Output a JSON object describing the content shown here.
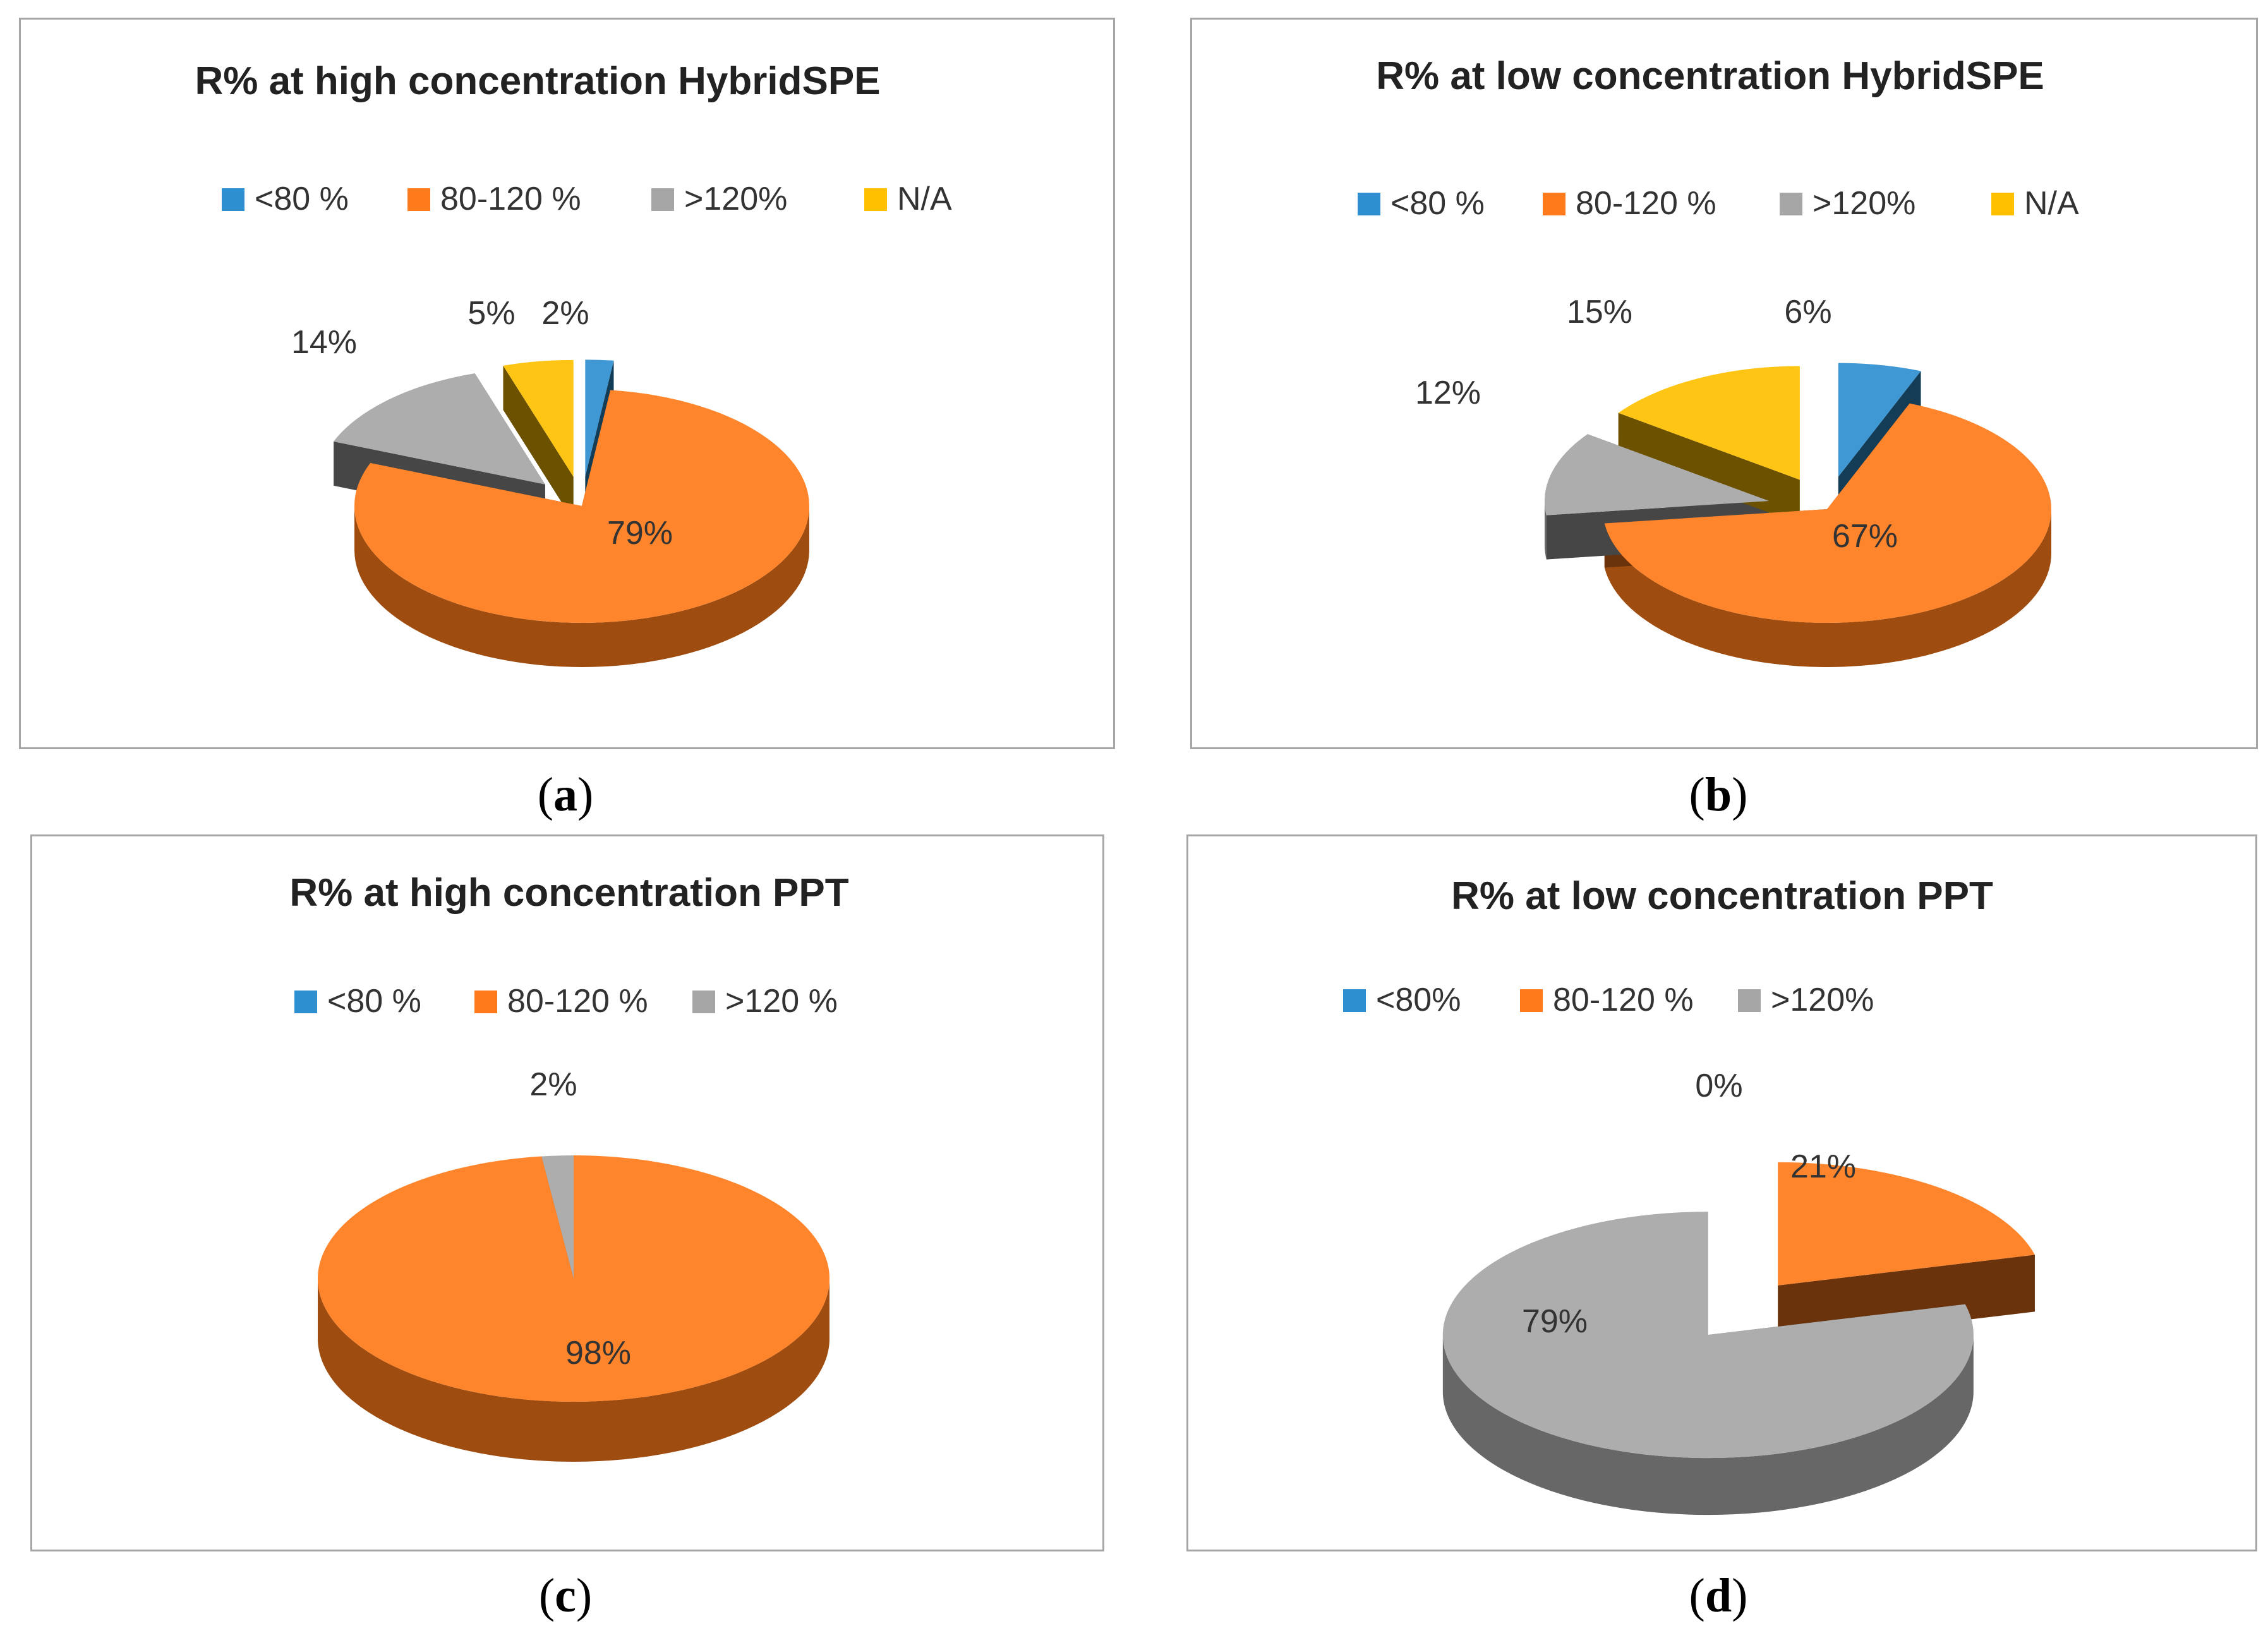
{
  "colors": {
    "blue": "#2e8fd0",
    "orange": "#ff7a1a",
    "gray": "#a6a6a6",
    "yellow": "#ffc000"
  },
  "chart_data": [
    {
      "id": "a",
      "type": "pie",
      "title": "R% at high concentration HybridSPE",
      "caption": "a",
      "legend": [
        "<80 %",
        "80-120 %",
        ">120%",
        "N/A"
      ],
      "legend_colors": [
        "blue",
        "orange",
        "gray",
        "yellow"
      ],
      "slices": [
        {
          "label": "<80 %",
          "value": 2,
          "text": "2%",
          "color": "blue"
        },
        {
          "label": "80-120 %",
          "value": 79,
          "text": "79%",
          "color": "orange"
        },
        {
          "label": ">120%",
          "value": 14,
          "text": "14%",
          "color": "gray"
        },
        {
          "label": "N/A",
          "value": 5,
          "text": "5%",
          "color": "yellow"
        }
      ]
    },
    {
      "id": "b",
      "type": "pie",
      "title": "R% at low concentration HybridSPE",
      "caption": "b",
      "legend": [
        "<80 %",
        "80-120 %",
        ">120%",
        "N/A"
      ],
      "legend_colors": [
        "blue",
        "orange",
        "gray",
        "yellow"
      ],
      "slices": [
        {
          "label": "<80 %",
          "value": 6,
          "text": "6%",
          "color": "blue"
        },
        {
          "label": "80-120 %",
          "value": 67,
          "text": "67%",
          "color": "orange"
        },
        {
          "label": ">120%",
          "value": 12,
          "text": "12%",
          "color": "gray"
        },
        {
          "label": "N/A",
          "value": 15,
          "text": "15%",
          "color": "yellow"
        }
      ]
    },
    {
      "id": "c",
      "type": "pie",
      "title": "R% at high concentration PPT",
      "caption": "c",
      "legend": [
        "<80 %",
        "80-120 %",
        ">120 %"
      ],
      "legend_colors": [
        "blue",
        "orange",
        "gray"
      ],
      "slices": [
        {
          "label": "80-120 %",
          "value": 98,
          "text": "98%",
          "color": "orange"
        },
        {
          "label": ">120 %",
          "value": 2,
          "text": "2%",
          "color": "gray"
        }
      ]
    },
    {
      "id": "d",
      "type": "pie",
      "title": "R% at low concentration PPT",
      "caption": "d",
      "legend": [
        "<80%",
        "80-120 %",
        ">120%"
      ],
      "legend_colors": [
        "blue",
        "orange",
        "gray"
      ],
      "slices": [
        {
          "label": "<80%",
          "value": 0,
          "text": "0%",
          "color": "blue"
        },
        {
          "label": "80-120 %",
          "value": 21,
          "text": "21%",
          "color": "orange"
        },
        {
          "label": ">120%",
          "value": 79,
          "text": "79%",
          "color": "gray"
        }
      ]
    }
  ]
}
